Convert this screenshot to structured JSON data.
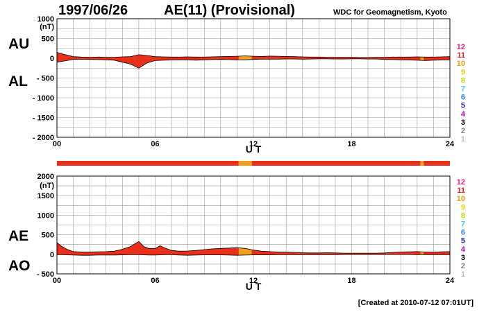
{
  "header": {
    "date": "1997/06/26",
    "title": "AE(11) (Provisional)",
    "source": "WDC for Geomagnetism, Kyoto",
    "created": "[Created at 2010-07-12 07:01UT]"
  },
  "station_count_labels": [
    {
      "text": "12",
      "color": "#e8217a"
    },
    {
      "text": "11",
      "color": "#e8201a"
    },
    {
      "text": "10",
      "color": "#f39a00"
    },
    {
      "text": "9",
      "color": "#e8d000"
    },
    {
      "text": "8",
      "color": "#b8e000"
    },
    {
      "text": "7",
      "color": "#40d0d8"
    },
    {
      "text": "6",
      "color": "#2a7ae8"
    },
    {
      "text": "5",
      "color": "#2020b0"
    },
    {
      "text": "4",
      "color": "#c000c0"
    },
    {
      "text": "3",
      "color": "#000000"
    },
    {
      "text": "2",
      "color": "#808080"
    },
    {
      "text": "1",
      "color": "#c0c0c0"
    }
  ],
  "colors": {
    "fill_main": "#e8301a",
    "fill_alt": "#f0a020",
    "grid": "#9a9a9a",
    "axis": "#000000"
  },
  "chart_data": [
    {
      "type": "area",
      "name": "AU-AL panel",
      "xlabel": "U T",
      "unit": "(nT)",
      "side_labels": [
        "AU",
        "AL"
      ],
      "ylim": [
        -2000,
        1000
      ],
      "yticks": [
        1000,
        500,
        0,
        -500,
        -1000,
        -1500,
        -2000
      ],
      "ytick_labels": [
        "1000",
        "500",
        "0",
        "- 500",
        "- 1000",
        "- 1500",
        "- 2000"
      ],
      "xlim": [
        0,
        24
      ],
      "xticks": [
        0,
        6,
        12,
        18,
        24
      ],
      "xtick_labels": [
        "00",
        "06",
        "12",
        "18",
        "24"
      ],
      "x": [
        0,
        0.3,
        0.6,
        1,
        1.5,
        2,
        2.5,
        3,
        3.5,
        4,
        4.5,
        5,
        5.5,
        6,
        6.5,
        7,
        7.5,
        8,
        8.5,
        9,
        9.5,
        10,
        10.5,
        11,
        11.5,
        12,
        12.5,
        13,
        13.5,
        14,
        14.5,
        15,
        15.5,
        16,
        16.5,
        17,
        17.5,
        18,
        18.5,
        19,
        19.5,
        20,
        20.5,
        21,
        21.5,
        22,
        22.5,
        23,
        23.5,
        24
      ],
      "upper": [
        150,
        110,
        80,
        40,
        30,
        25,
        30,
        25,
        25,
        35,
        40,
        90,
        70,
        40,
        35,
        30,
        30,
        35,
        30,
        30,
        35,
        40,
        45,
        50,
        60,
        50,
        45,
        55,
        50,
        45,
        40,
        35,
        30,
        30,
        25,
        25,
        25,
        25,
        20,
        20,
        25,
        25,
        30,
        30,
        30,
        35,
        30,
        30,
        35,
        40
      ],
      "lower": [
        -100,
        -80,
        -60,
        -30,
        -25,
        -30,
        -35,
        -40,
        -50,
        -100,
        -150,
        -250,
        -120,
        -60,
        -50,
        -45,
        -40,
        -40,
        -50,
        -40,
        -35,
        -30,
        -35,
        -40,
        -40,
        -30,
        -25,
        -25,
        -25,
        -20,
        -20,
        -25,
        -20,
        -15,
        -15,
        -20,
        -20,
        -15,
        -15,
        -20,
        -20,
        -30,
        -35,
        -40,
        -45,
        -50,
        -60,
        -50,
        -45,
        -40
      ],
      "highlight_ranges": [
        [
          11.1,
          11.9
        ],
        [
          22.2,
          22.4
        ]
      ]
    },
    {
      "type": "area",
      "name": "AE-AO panel",
      "xlabel": "U T",
      "unit": "(nT)",
      "side_labels": [
        "AE",
        "AO"
      ],
      "ylim": [
        -500,
        2000
      ],
      "yticks": [
        2000,
        1500,
        1000,
        500,
        0,
        -500
      ],
      "ytick_labels": [
        "2000",
        "1500",
        "1000",
        "500",
        "0",
        "- 500"
      ],
      "xlim": [
        0,
        24
      ],
      "xticks": [
        0,
        6,
        12,
        18,
        24
      ],
      "xtick_labels": [
        "00",
        "06",
        "12",
        "18",
        "24"
      ],
      "x": [
        0,
        0.3,
        0.6,
        1,
        1.5,
        2,
        2.5,
        3,
        3.5,
        4,
        4.5,
        5,
        5.3,
        5.6,
        6,
        6.3,
        6.6,
        7,
        7.5,
        8,
        8.5,
        9,
        9.5,
        10,
        10.5,
        11,
        11.5,
        12,
        12.5,
        13,
        13.5,
        14,
        14.5,
        15,
        15.5,
        16,
        16.5,
        17,
        17.5,
        18,
        18.5,
        19,
        19.5,
        20,
        20.5,
        21,
        21.5,
        22,
        22.5,
        23,
        23.5,
        24
      ],
      "upper": [
        300,
        200,
        130,
        70,
        60,
        60,
        65,
        70,
        80,
        130,
        200,
        330,
        200,
        150,
        150,
        220,
        160,
        100,
        80,
        85,
        100,
        120,
        140,
        150,
        160,
        170,
        150,
        110,
        80,
        70,
        60,
        55,
        50,
        40,
        35,
        35,
        40,
        35,
        30,
        30,
        30,
        30,
        30,
        35,
        50,
        60,
        65,
        70,
        60,
        55,
        65,
        70
      ],
      "lower": [
        -10,
        -10,
        -15,
        -20,
        -25,
        -25,
        -20,
        -20,
        -20,
        -15,
        -10,
        -10,
        -15,
        -20,
        -20,
        -15,
        -10,
        -10,
        -20,
        -25,
        -20,
        -15,
        -15,
        -15,
        -20,
        -25,
        -20,
        -15,
        -15,
        -15,
        -10,
        -10,
        -10,
        -10,
        -10,
        -10,
        -10,
        -10,
        -5,
        -5,
        -5,
        -5,
        -5,
        -5,
        -5,
        -5,
        -5,
        -10,
        -10,
        -10,
        -10,
        -10
      ],
      "highlight_ranges": [
        [
          11.1,
          11.9
        ],
        [
          22.2,
          22.4
        ]
      ]
    }
  ],
  "station_bar": {
    "segments": [
      {
        "from": 0,
        "to": 11.1,
        "color": "#e8301a"
      },
      {
        "from": 11.1,
        "to": 11.9,
        "color": "#f0a020"
      },
      {
        "from": 11.9,
        "to": 22.2,
        "color": "#e8301a"
      },
      {
        "from": 22.2,
        "to": 22.4,
        "color": "#f0a020"
      },
      {
        "from": 22.4,
        "to": 24,
        "color": "#e8301a"
      }
    ]
  }
}
